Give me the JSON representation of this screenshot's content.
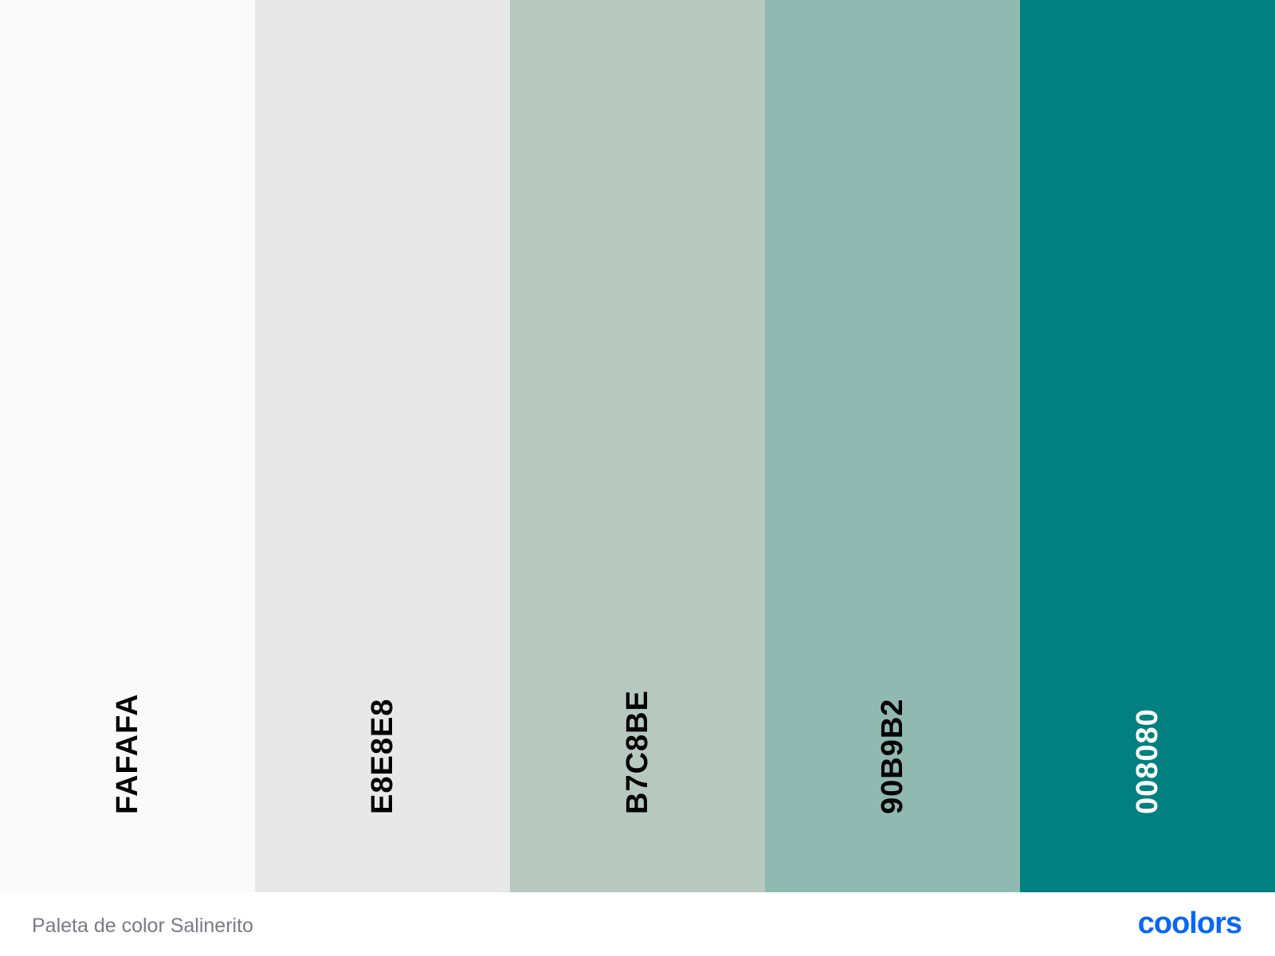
{
  "palette": {
    "swatches": [
      {
        "hex": "FAFAFA",
        "color": "#FAFAFA",
        "text_color": "#000000"
      },
      {
        "hex": "E8E8E8",
        "color": "#E8E8E8",
        "text_color": "#000000"
      },
      {
        "hex": "B7C8BE",
        "color": "#B7C8BE",
        "text_color": "#000000"
      },
      {
        "hex": "90B9B2",
        "color": "#90B9B2",
        "text_color": "#000000"
      },
      {
        "hex": "008080",
        "color": "#008080",
        "text_color": "#FFFFFF"
      }
    ]
  },
  "footer": {
    "title": "Paleta de color Salinerito",
    "brand": "coolors",
    "brand_color": "#0A66F5"
  }
}
